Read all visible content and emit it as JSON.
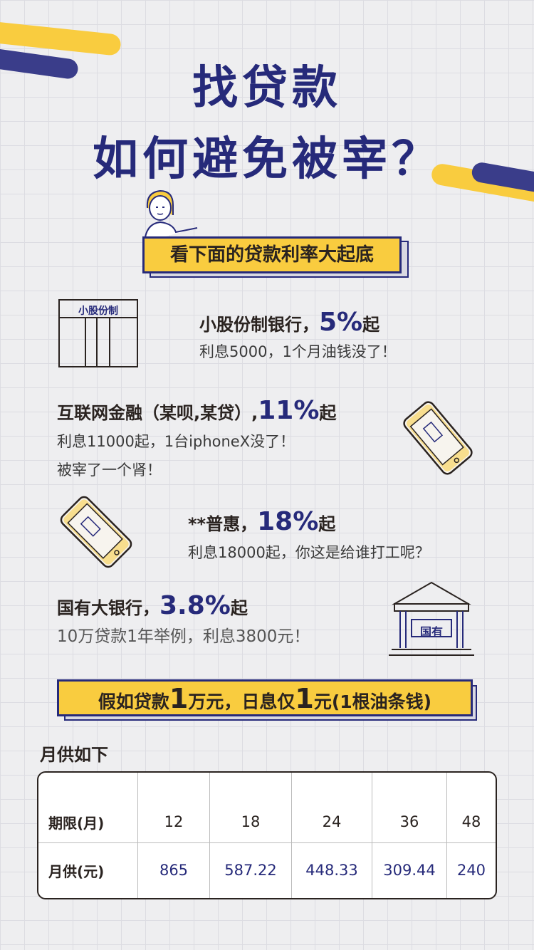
{
  "header": {
    "title_line1": "找贷款",
    "title_line2": "如何避免被宰？"
  },
  "intro_banner": "看下面的贷款利率大起底",
  "items": [
    {
      "icon": "bank-table-icon",
      "icon_label": "小股份制",
      "title": "小股份制银行，",
      "rate": "5%",
      "suffix": "起",
      "line1": "利息5000，1个月油钱没了！"
    },
    {
      "icon": "phone-icon",
      "icon_label": "",
      "title": "互联网金融（某呗,某贷）,",
      "rate": "11%",
      "suffix": "起",
      "line1": "利息11000起，1台iphoneX没了！",
      "line2": "被宰了一个肾！"
    },
    {
      "icon": "phone-icon",
      "icon_label": "",
      "title": "**普惠，",
      "rate": "18%",
      "suffix": "起",
      "line1": "利息18000起，你这是给谁打工呢？"
    },
    {
      "icon": "bank-building-icon",
      "icon_label": "国有",
      "title": "国有大银行，",
      "rate": "3.8%",
      "suffix": "起",
      "line1": "10万贷款1年举例，利息3800元！"
    }
  ],
  "loan_banner": {
    "part1": "假如贷款",
    "num1": "1",
    "part2": "万元，日息仅",
    "num2": "1",
    "part3": "元(1根油条钱)"
  },
  "table_section": {
    "heading": "月供如下",
    "row_labels": [
      "期限(月)",
      "月供(元)"
    ],
    "terms": [
      "12",
      "18",
      "24",
      "36",
      "48"
    ],
    "payments": [
      "865",
      "587.22",
      "448.33",
      "309.44",
      "240"
    ]
  },
  "colors": {
    "navy": "#262a7a",
    "yellow": "#f9cc3f",
    "background": "#eeeef0"
  }
}
